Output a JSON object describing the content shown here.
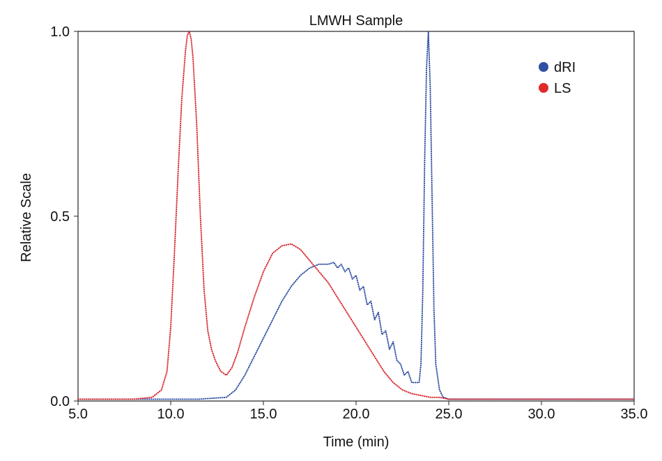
{
  "chart_data": {
    "type": "line",
    "title": "LMWH Sample",
    "xlabel": "Time (min)",
    "ylabel": "Relative Scale",
    "xlim": [
      5.0,
      35.0
    ],
    "ylim": [
      0.0,
      1.0
    ],
    "xticks": [
      "5.0",
      "10.0",
      "15.0",
      "20.0",
      "25.0",
      "30.0",
      "35.0"
    ],
    "yticks": [
      "0.0",
      "0.5",
      "1.0"
    ],
    "grid": false,
    "legend_position": "top-right",
    "series": [
      {
        "name": "dRI",
        "color": "#2f4fa2",
        "marker_color": "#2f4fa2",
        "style": "dotted",
        "x": [
          5.0,
          8.0,
          11.5,
          13.0,
          13.5,
          14.0,
          14.5,
          15.0,
          15.5,
          16.0,
          16.5,
          17.0,
          17.5,
          18.0,
          18.5,
          18.8,
          19.0,
          19.2,
          19.4,
          19.6,
          19.8,
          20.0,
          20.2,
          20.4,
          20.6,
          20.8,
          21.0,
          21.2,
          21.4,
          21.6,
          21.8,
          22.0,
          22.2,
          22.4,
          22.6,
          22.8,
          23.0,
          23.2,
          23.4,
          23.5,
          23.6,
          23.7,
          23.8,
          23.9,
          24.0,
          24.1,
          24.2,
          24.3,
          24.5,
          24.7,
          25.0,
          26.0,
          30.0,
          35.0
        ],
        "y": [
          0.005,
          0.005,
          0.005,
          0.01,
          0.03,
          0.07,
          0.12,
          0.17,
          0.22,
          0.27,
          0.31,
          0.34,
          0.36,
          0.37,
          0.37,
          0.375,
          0.36,
          0.37,
          0.35,
          0.36,
          0.33,
          0.34,
          0.3,
          0.31,
          0.26,
          0.27,
          0.22,
          0.24,
          0.18,
          0.19,
          0.14,
          0.16,
          0.11,
          0.1,
          0.07,
          0.08,
          0.05,
          0.05,
          0.05,
          0.1,
          0.3,
          0.65,
          0.9,
          1.0,
          0.85,
          0.55,
          0.25,
          0.1,
          0.03,
          0.01,
          0.005,
          0.005,
          0.005,
          0.005
        ]
      },
      {
        "name": "LS",
        "color": "#d8262c",
        "marker_color": "#e02a2a",
        "style": "dotted",
        "x": [
          5.0,
          8.0,
          9.0,
          9.5,
          9.8,
          10.0,
          10.2,
          10.4,
          10.6,
          10.8,
          10.9,
          11.0,
          11.1,
          11.2,
          11.4,
          11.6,
          11.8,
          12.0,
          12.2,
          12.4,
          12.7,
          13.0,
          13.3,
          13.6,
          14.0,
          14.5,
          15.0,
          15.5,
          16.0,
          16.5,
          17.0,
          17.5,
          18.0,
          18.5,
          19.0,
          19.5,
          20.0,
          20.5,
          21.0,
          21.5,
          22.0,
          22.5,
          23.0,
          23.5,
          24.0,
          24.5,
          25.0,
          26.0,
          30.0,
          35.0
        ],
        "y": [
          0.005,
          0.005,
          0.01,
          0.03,
          0.08,
          0.2,
          0.4,
          0.62,
          0.82,
          0.95,
          0.99,
          1.0,
          0.98,
          0.93,
          0.75,
          0.5,
          0.3,
          0.19,
          0.14,
          0.11,
          0.08,
          0.07,
          0.09,
          0.13,
          0.2,
          0.28,
          0.35,
          0.4,
          0.42,
          0.425,
          0.41,
          0.38,
          0.35,
          0.32,
          0.28,
          0.24,
          0.2,
          0.16,
          0.12,
          0.08,
          0.05,
          0.03,
          0.02,
          0.015,
          0.01,
          0.01,
          0.005,
          0.005,
          0.005,
          0.005
        ]
      }
    ]
  }
}
